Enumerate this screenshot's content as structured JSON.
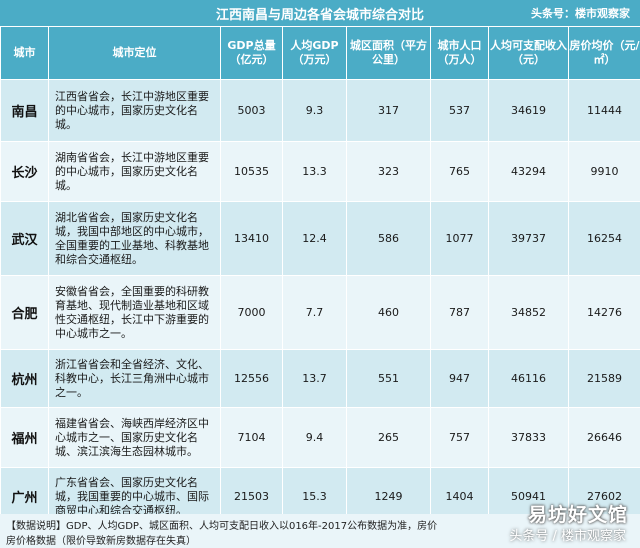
{
  "title": "江西南昌与周边各省会城市综合对比",
  "source": "头条号：楼市观察家",
  "headers": [
    "城市",
    "城市定位",
    "GDP总量（亿元）",
    "人均GDP（万元）",
    "城区面积（平方公里）",
    "城市人口（万人）",
    "人均可支配收入（元）",
    "房价均价（元/㎡）"
  ],
  "rows": [
    {
      "city": "南昌",
      "position": "江西省省会，长江中游地区重要的中心城市，国家历史文化名城。",
      "gdp": "5003",
      "gdp_pc": "9.3",
      "area": "317",
      "pop": "537",
      "income": "34619",
      "price": "11444"
    },
    {
      "city": "长沙",
      "position": "湖南省省会，长江中游地区重要的中心城市，国家历史文化名城。",
      "gdp": "10535",
      "gdp_pc": "13.3",
      "area": "323",
      "pop": "765",
      "income": "43294",
      "price": "9910"
    },
    {
      "city": "武汉",
      "position": "湖北省省会，国家历史文化名城，我国中部地区的中心城市，全国重要的工业基地、科教基地和综合交通枢纽。",
      "gdp": "13410",
      "gdp_pc": "12.4",
      "area": "586",
      "pop": "1077",
      "income": "39737",
      "price": "16254"
    },
    {
      "city": "合肥",
      "position": "安徽省省会，全国重要的科研教育基地、现代制造业基地和区域性交通枢纽，长江中下游重要的中心城市之一。",
      "gdp": "7000",
      "gdp_pc": "7.7",
      "area": "460",
      "pop": "787",
      "income": "34852",
      "price": "14276"
    },
    {
      "city": "杭州",
      "position": "浙江省省会和全省经济、文化、科教中心，长江三角洲中心城市之一。",
      "gdp": "12556",
      "gdp_pc": "13.7",
      "area": "551",
      "pop": "947",
      "income": "46116",
      "price": "21589"
    },
    {
      "city": "福州",
      "position": "福建省省会、海峡西岸经济区中心城市之一、国家历史文化名城、滨江滨海生态园林城市。",
      "gdp": "7104",
      "gdp_pc": "9.4",
      "area": "265",
      "pop": "757",
      "income": "37833",
      "price": "26646"
    },
    {
      "city": "广州",
      "position": "广东省省会、国家历史文化名城，我国重要的中心城市、国际商贸中心和综合交通枢纽。",
      "gdp": "21503",
      "gdp_pc": "15.3",
      "area": "1249",
      "pop": "1404",
      "income": "50941",
      "price": "27602"
    }
  ],
  "footer": {
    "line1": "【数据说明】GDP、人均GDP、城区面积、人均可支配日收入以016年-2017公布数据为准，房价",
    "line2": "房价格数据（限价导致新房数据存在失真）"
  },
  "watermark": {
    "brand": "易坊好文馆",
    "sub": "头条号 / 楼市观察家"
  },
  "colors": {
    "header": "#4bacc6",
    "row_odd": "#d2eaf1",
    "row_even": "#eaf5f9"
  }
}
